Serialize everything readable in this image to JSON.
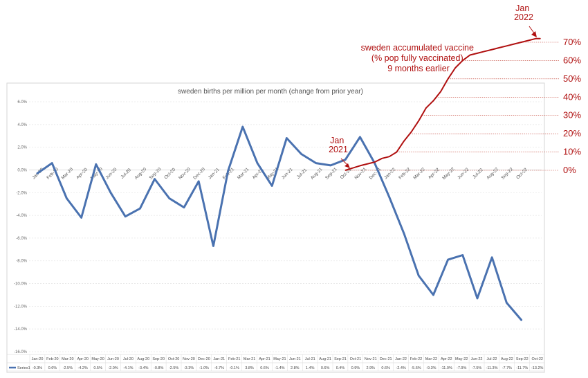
{
  "chart_data": [
    {
      "type": "line",
      "title": "sweden births per million per month (change from prior year)",
      "categories": [
        "Jan-20",
        "Feb-20",
        "Mar-20",
        "Apr-20",
        "May-20",
        "Jun-20",
        "Jul-20",
        "Aug-20",
        "Sep-20",
        "Oct-20",
        "Nov-20",
        "Dec-20",
        "Jan-21",
        "Feb-21",
        "Mar-21",
        "Apr-21",
        "May-21",
        "Jun-21",
        "Jul-21",
        "Aug-21",
        "Sep-21",
        "Oct-21",
        "Nov-21",
        "Dec-21",
        "Jan-22",
        "Feb-22",
        "Mar-22",
        "Apr-22",
        "May-22",
        "Jun-22",
        "Jul-22",
        "Aug-22",
        "Sep-22",
        "Oct-22"
      ],
      "series": [
        {
          "name": "Series1",
          "color": "#4a72b0",
          "values": [
            -0.3,
            0.6,
            -2.5,
            -4.2,
            0.5,
            -2.0,
            -4.1,
            -3.4,
            -0.8,
            -2.5,
            -3.3,
            -1.0,
            -6.7,
            -0.1,
            3.8,
            0.6,
            -1.4,
            2.8,
            1.4,
            0.6,
            0.4,
            0.9,
            2.9,
            0.6,
            -2.4,
            -5.6,
            -9.3,
            -11.0,
            -7.9,
            -7.5,
            -11.3,
            -7.7,
            -11.7,
            -13.2
          ],
          "labels": [
            "-0.3%",
            "0.6%",
            "-2.5%",
            "-4.2%",
            "0.5%",
            "-2.0%",
            "-4.1%",
            "-3.4%",
            "-0.8%",
            "-2.5%",
            "-3.3%",
            "-1.0%",
            "-6.7%",
            "-0.1%",
            "3.8%",
            "0.6%",
            "-1.4%",
            "2.8%",
            "1.4%",
            "0.6%",
            "0.4%",
            "0.9%",
            "2.9%",
            "0.6%",
            "-2.4%",
            "-5.6%",
            "-9.3%",
            "-11.0%",
            "-7.9%",
            "-7.5%",
            "-11.3%",
            "-7.7%",
            "-11.7%",
            "-13.2%"
          ]
        }
      ],
      "y_ticks": [
        "6.0%",
        "4.0%",
        "2.0%",
        "0.0%",
        "-2.0%",
        "-4.0%",
        "-6.0%",
        "-8.0%",
        "-10.0%",
        "-12.0%",
        "-14.0%",
        "-16.0%"
      ],
      "ylim": [
        -16,
        6
      ],
      "grid": true,
      "legend": "bottom-left data table"
    },
    {
      "type": "line",
      "title": "sweden accumulated vaccine (% pop fully vaccinated) 9 months earlier",
      "color": "#b01010",
      "x_start": "Oct-21",
      "x_end": "Oct-22",
      "points": [
        [
          21,
          0
        ],
        [
          22,
          2.5
        ],
        [
          23,
          4.5
        ],
        [
          23.5,
          6.5
        ],
        [
          24,
          7.5
        ],
        [
          24.5,
          10
        ],
        [
          25,
          16
        ],
        [
          25.5,
          21
        ],
        [
          26,
          27
        ],
        [
          26.5,
          34
        ],
        [
          27,
          38
        ],
        [
          27.5,
          43
        ],
        [
          28,
          50
        ],
        [
          28.5,
          56
        ],
        [
          29,
          60
        ],
        [
          29.5,
          63
        ],
        [
          30,
          64
        ],
        [
          30.5,
          65
        ],
        [
          31,
          66
        ],
        [
          31.5,
          67
        ],
        [
          32,
          68
        ],
        [
          32.5,
          69
        ],
        [
          33,
          70
        ],
        [
          33.5,
          71
        ],
        [
          34,
          72
        ],
        [
          34.3,
          72
        ]
      ],
      "y_ticks": [
        "70%",
        "60%",
        "50%",
        "40%",
        "30%",
        "20%",
        "10%",
        "0%"
      ],
      "ylim": [
        0,
        70
      ]
    }
  ],
  "annotations": {
    "vaccine_title_lines": [
      "sweden accumulated vaccine",
      "(% pop fully vaccinated)",
      "9 months earlier"
    ],
    "jan2021_lines": [
      "Jan",
      "2021"
    ],
    "jan2022_lines": [
      "Jan",
      "2022"
    ]
  }
}
